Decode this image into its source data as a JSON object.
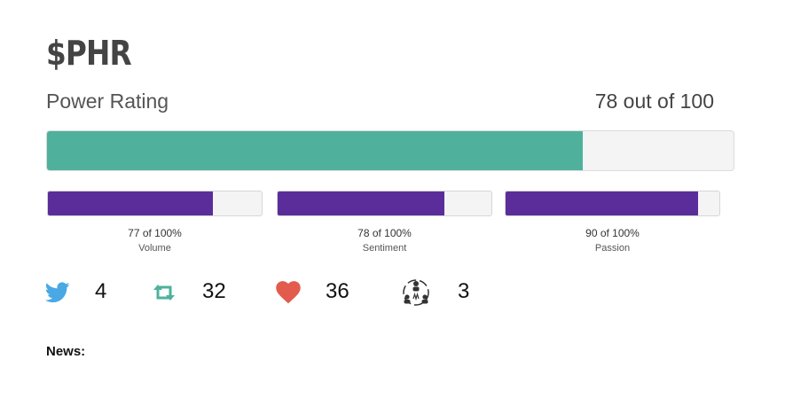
{
  "ticker": "$PHR",
  "power_rating": {
    "label": "Power Rating",
    "score": "78",
    "score_suffix": " out of 100",
    "fill_fraction": 0.78,
    "color": "#4fb19c"
  },
  "sub_ratings": [
    {
      "value_text": "77 of 100%",
      "name": "Volume",
      "fill_fraction": 0.77
    },
    {
      "value_text": "78 of 100%",
      "name": "Sentiment",
      "fill_fraction": 0.78
    },
    {
      "value_text": "90 of 100%",
      "name": "Passion",
      "fill_fraction": 0.9
    }
  ],
  "sub_bar_color": "#5b2d9a",
  "stats": [
    {
      "icon": "twitter-bird-icon",
      "count": "4",
      "color": "#4aa8e4"
    },
    {
      "icon": "retweet-icon",
      "count": "32",
      "color": "#4fb19c"
    },
    {
      "icon": "heart-icon",
      "count": "36",
      "color": "#e25b4d"
    },
    {
      "icon": "community-icon",
      "count": "3",
      "color": "#333333"
    }
  ],
  "news": {
    "label": "News:"
  }
}
